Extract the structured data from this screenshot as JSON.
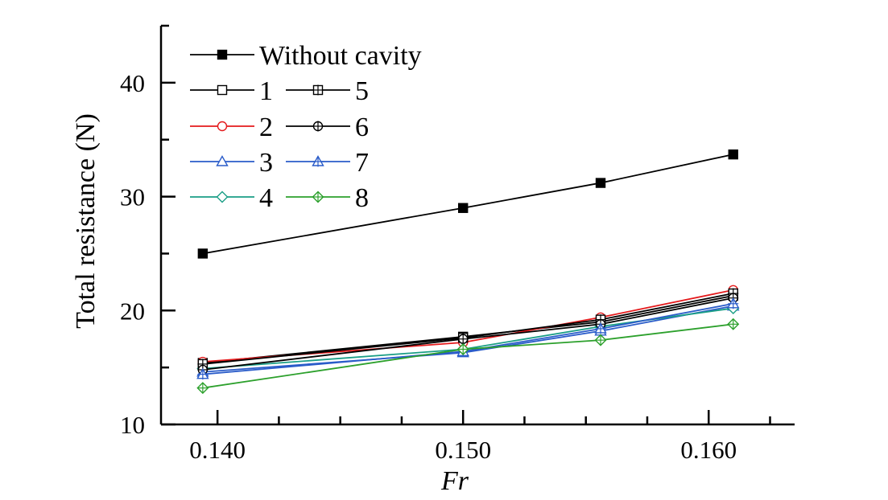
{
  "chart_data": {
    "type": "line",
    "xlabel": "Fr",
    "ylabel": "Total resistance (N)",
    "xlim": [
      0.1377,
      0.1635
    ],
    "ylim": [
      10,
      45
    ],
    "x": [
      0.1394,
      0.15,
      0.1556,
      0.161
    ],
    "x_ticks": [
      {
        "value": 0.14,
        "label": "0.140"
      },
      {
        "value": 0.15,
        "label": "0.150"
      },
      {
        "value": 0.16,
        "label": "0.160"
      }
    ],
    "x_minor_ticks": [
      0.1425,
      0.145,
      0.1475,
      0.1525,
      0.155,
      0.1575,
      0.1625
    ],
    "y_ticks": [
      {
        "value": 10,
        "label": "10"
      },
      {
        "value": 20,
        "label": "20"
      },
      {
        "value": 30,
        "label": "30"
      },
      {
        "value": 40,
        "label": "40"
      }
    ],
    "y_minor_ticks": [
      15,
      25,
      35,
      45
    ],
    "grid": false,
    "legend_placement": "top-left",
    "series": [
      {
        "name": "Without cavity",
        "marker": "square-filled",
        "color": "#000000",
        "values": [
          25.0,
          29.0,
          31.2,
          33.7
        ]
      },
      {
        "name": "1",
        "marker": "square",
        "color": "#000000",
        "values": [
          15.4,
          17.7,
          19.0,
          21.3
        ]
      },
      {
        "name": "2",
        "marker": "circle",
        "color": "#e41a1c",
        "values": [
          15.5,
          17.2,
          19.4,
          21.8
        ]
      },
      {
        "name": "3",
        "marker": "triangle",
        "color": "#2a5cc9",
        "values": [
          14.6,
          16.3,
          18.2,
          20.4
        ]
      },
      {
        "name": "4",
        "marker": "diamond",
        "color": "#1a9e86",
        "values": [
          14.9,
          16.6,
          18.6,
          20.2
        ]
      },
      {
        "name": "5",
        "marker": "square-plus",
        "color": "#000000",
        "values": [
          15.3,
          17.6,
          19.2,
          21.5
        ]
      },
      {
        "name": "6",
        "marker": "circle-plus",
        "color": "#000000",
        "values": [
          14.8,
          17.5,
          18.8,
          21.1
        ]
      },
      {
        "name": "7",
        "marker": "triangle-plus",
        "color": "#2a5cc9",
        "values": [
          14.4,
          16.4,
          18.4,
          20.6
        ]
      },
      {
        "name": "8",
        "marker": "diamond-plus",
        "color": "#2ca02c",
        "values": [
          13.2,
          16.6,
          17.4,
          18.8
        ]
      }
    ]
  }
}
